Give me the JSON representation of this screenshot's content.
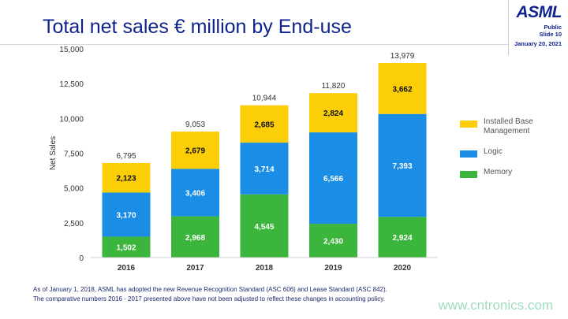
{
  "header": {
    "title": "Total net sales € million by End-use",
    "logo": "ASML",
    "classification": "Public",
    "slide": "Slide 10",
    "date": "January 20, 2021"
  },
  "chart_data": {
    "type": "bar",
    "stacked": true,
    "title": "Total net sales € million by End-use",
    "xlabel": "",
    "ylabel": "Net Sales",
    "ylim": [
      0,
      15000
    ],
    "yticks": [
      0,
      2500,
      5000,
      7500,
      10000,
      12500,
      15000
    ],
    "ytick_labels": [
      "0",
      "2,500",
      "5,000",
      "7,500",
      "10,000",
      "12,500",
      "15,000"
    ],
    "categories": [
      "2016",
      "2017",
      "2018",
      "2019",
      "2020"
    ],
    "series": [
      {
        "name": "Memory",
        "color": "#3cb53c",
        "values": [
          1502,
          2968,
          4545,
          2430,
          2924
        ],
        "labels": [
          "1,502",
          "2,968",
          "4,545",
          "2,430",
          "2,924"
        ]
      },
      {
        "name": "Logic",
        "color": "#1a8de6",
        "values": [
          3170,
          3406,
          3714,
          6566,
          7393
        ],
        "labels": [
          "3,170",
          "3,406",
          "3,714",
          "6,566",
          "7,393"
        ]
      },
      {
        "name": "Installed Base Management",
        "color": "#fcce08",
        "values": [
          2123,
          2679,
          2685,
          2824,
          3662
        ],
        "labels": [
          "2,123",
          "2,679",
          "2,685",
          "2,824",
          "3,662"
        ]
      }
    ],
    "totals": [
      6795,
      9053,
      10944,
      11820,
      13979
    ],
    "total_labels": [
      "6,795",
      "9,053",
      "10,944",
      "11,820",
      "13,979"
    ],
    "legend": {
      "placement": "right",
      "items": [
        {
          "label": "Installed Base Management",
          "color": "#fcce08"
        },
        {
          "label": "Logic",
          "color": "#1a8de6"
        },
        {
          "label": "Memory",
          "color": "#3cb53c"
        }
      ]
    },
    "grid": false
  },
  "footnote": {
    "line1": "As of January 1, 2018, ASML has adopted the new Revenue Recognition Standard (ASC 606) and Lease Standard (ASC 842).",
    "line2": "The comparative numbers 2016 - 2017 presented above have not been adjusted to reflect these changes in accounting policy."
  },
  "watermark": "www.cntronics.com"
}
